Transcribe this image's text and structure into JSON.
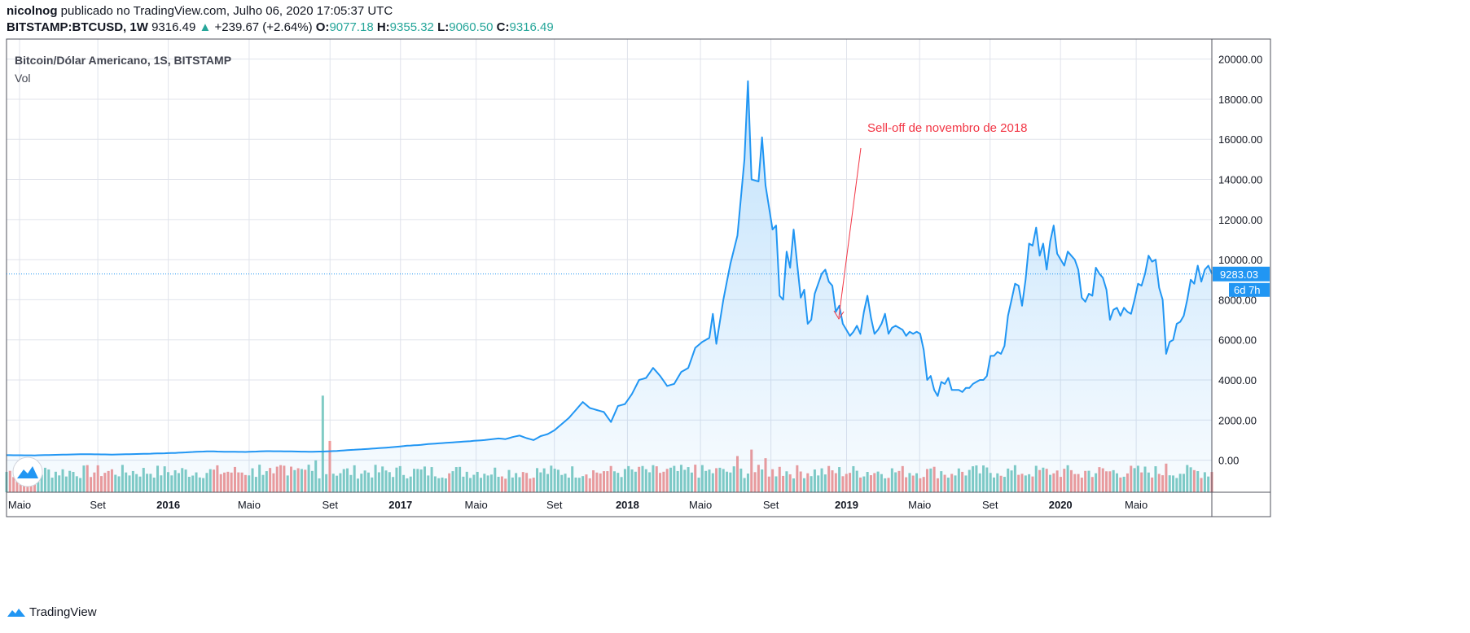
{
  "header": {
    "author": "nicolnog",
    "published_text": "publicado no TradingView.com, Julho 06, 2020 17:05:37 UTC",
    "symbol": "BITSTAMP:BTCUSD, 1W",
    "last": "9316.49",
    "change_arrow": "▲",
    "change": "+239.67 (+2.64%)",
    "o_label": "O:",
    "o_val": "9077.18",
    "h_label": "H:",
    "h_val": "9355.32",
    "l_label": "L:",
    "l_val": "9060.50",
    "c_label": "C:",
    "c_val": "9316.49"
  },
  "legend": {
    "title": "Bitcoin/Dólar Americano, 1S, BITSTAMP",
    "vol": "Vol"
  },
  "price_marker": {
    "value": "9283.03",
    "countdown": "6d 7h"
  },
  "footer": {
    "brand": "TradingView",
    "logo_icon": "tradingview-logo-icon"
  },
  "colors": {
    "line": "#2196f3",
    "area": "#2196f3",
    "vol_up": "#80cbc4",
    "vol_down": "#ef9a9a",
    "annotation": "#f23645",
    "marker": "#2196f3"
  },
  "chart_data": {
    "type": "area",
    "title": "Bitcoin/Dólar Americano, 1S, BITSTAMP",
    "ylim": [
      -1600,
      21000
    ],
    "y_ticks": [
      "20000.00",
      "18000.00",
      "16000.00",
      "14000.00",
      "12000.00",
      "10000.00",
      "8000.00",
      "6000.00",
      "4000.00",
      "2000.00",
      "0.00"
    ],
    "x_ticks": [
      "Maio",
      "Set",
      "2016",
      "Maio",
      "Set",
      "2017",
      "Maio",
      "Set",
      "2018",
      "Maio",
      "Set",
      "2019",
      "Maio",
      "Set",
      "2020",
      "Maio"
    ],
    "x_ticks_bold": [
      false,
      false,
      true,
      false,
      false,
      true,
      false,
      false,
      true,
      false,
      false,
      true,
      false,
      false,
      true,
      false
    ],
    "grid": true,
    "annotation": {
      "text": "Sell-off de novembro de 2018"
    },
    "price_keypoints": [
      [
        0,
        250
      ],
      [
        8,
        240
      ],
      [
        15,
        270
      ],
      [
        22,
        300
      ],
      [
        30,
        280
      ],
      [
        40,
        320
      ],
      [
        48,
        360
      ],
      [
        54,
        420
      ],
      [
        58,
        440
      ],
      [
        62,
        420
      ],
      [
        68,
        410
      ],
      [
        74,
        450
      ],
      [
        80,
        440
      ],
      [
        86,
        420
      ],
      [
        90,
        430
      ],
      [
        94,
        460
      ],
      [
        98,
        510
      ],
      [
        102,
        550
      ],
      [
        106,
        600
      ],
      [
        110,
        650
      ],
      [
        114,
        720
      ],
      [
        118,
        760
      ],
      [
        120,
        800
      ],
      [
        124,
        850
      ],
      [
        128,
        900
      ],
      [
        132,
        950
      ],
      [
        136,
        1000
      ],
      [
        140,
        1080
      ],
      [
        142,
        1050
      ],
      [
        144,
        1150
      ],
      [
        146,
        1230
      ],
      [
        148,
        1100
      ],
      [
        150,
        1000
      ],
      [
        152,
        1200
      ],
      [
        154,
        1300
      ],
      [
        156,
        1500
      ],
      [
        158,
        1800
      ],
      [
        160,
        2100
      ],
      [
        162,
        2500
      ],
      [
        164,
        2900
      ],
      [
        166,
        2600
      ],
      [
        168,
        2500
      ],
      [
        170,
        2400
      ],
      [
        172,
        1900
      ],
      [
        174,
        2700
      ],
      [
        176,
        2800
      ],
      [
        178,
        3300
      ],
      [
        180,
        4000
      ],
      [
        182,
        4100
      ],
      [
        184,
        4600
      ],
      [
        186,
        4200
      ],
      [
        188,
        3700
      ],
      [
        190,
        3800
      ],
      [
        192,
        4400
      ],
      [
        194,
        4600
      ],
      [
        196,
        5600
      ],
      [
        198,
        5900
      ],
      [
        200,
        6100
      ],
      [
        201,
        7300
      ],
      [
        202,
        5800
      ],
      [
        204,
        8000
      ],
      [
        206,
        9800
      ],
      [
        208,
        11200
      ],
      [
        210,
        15000
      ],
      [
        211,
        18900
      ],
      [
        212,
        14000
      ],
      [
        214,
        13900
      ],
      [
        215,
        16100
      ],
      [
        216,
        13700
      ],
      [
        218,
        11500
      ],
      [
        219,
        11700
      ],
      [
        220,
        8200
      ],
      [
        221,
        8000
      ],
      [
        222,
        10400
      ],
      [
        223,
        9600
      ],
      [
        224,
        11500
      ],
      [
        225,
        9800
      ],
      [
        226,
        8100
      ],
      [
        227,
        8500
      ],
      [
        228,
        6800
      ],
      [
        229,
        7000
      ],
      [
        230,
        8300
      ],
      [
        231,
        8800
      ],
      [
        232,
        9300
      ],
      [
        233,
        9500
      ],
      [
        234,
        8900
      ],
      [
        235,
        8700
      ],
      [
        236,
        7400
      ],
      [
        237,
        7700
      ],
      [
        238,
        6800
      ],
      [
        239,
        6500
      ],
      [
        240,
        6200
      ],
      [
        241,
        6400
      ],
      [
        242,
        6700
      ],
      [
        243,
        6300
      ],
      [
        244,
        7400
      ],
      [
        245,
        8200
      ],
      [
        246,
        7100
      ],
      [
        247,
        6300
      ],
      [
        248,
        6500
      ],
      [
        249,
        6800
      ],
      [
        250,
        7300
      ],
      [
        251,
        6300
      ],
      [
        252,
        6600
      ],
      [
        253,
        6700
      ],
      [
        254,
        6600
      ],
      [
        255,
        6500
      ],
      [
        256,
        6200
      ],
      [
        257,
        6400
      ],
      [
        258,
        6300
      ],
      [
        259,
        6400
      ],
      [
        260,
        6300
      ],
      [
        261,
        5500
      ],
      [
        262,
        4000
      ],
      [
        263,
        4200
      ],
      [
        264,
        3500
      ],
      [
        265,
        3200
      ],
      [
        266,
        3900
      ],
      [
        267,
        3800
      ],
      [
        268,
        4100
      ],
      [
        269,
        3500
      ],
      [
        271,
        3500
      ],
      [
        272,
        3400
      ],
      [
        273,
        3600
      ],
      [
        274,
        3600
      ],
      [
        275,
        3800
      ],
      [
        276,
        3900
      ],
      [
        277,
        4000
      ],
      [
        278,
        4000
      ],
      [
        279,
        4200
      ],
      [
        280,
        5200
      ],
      [
        281,
        5200
      ],
      [
        282,
        5400
      ],
      [
        283,
        5300
      ],
      [
        284,
        5700
      ],
      [
        285,
        7200
      ],
      [
        286,
        8000
      ],
      [
        287,
        8800
      ],
      [
        288,
        8700
      ],
      [
        289,
        7700
      ],
      [
        290,
        9000
      ],
      [
        291,
        10800
      ],
      [
        292,
        10700
      ],
      [
        293,
        11600
      ],
      [
        294,
        10200
      ],
      [
        295,
        10800
      ],
      [
        296,
        9500
      ],
      [
        297,
        10900
      ],
      [
        298,
        11700
      ],
      [
        299,
        10300
      ],
      [
        300,
        10000
      ],
      [
        301,
        9700
      ],
      [
        302,
        10400
      ],
      [
        303,
        10200
      ],
      [
        304,
        10000
      ],
      [
        305,
        9500
      ],
      [
        306,
        8100
      ],
      [
        307,
        7900
      ],
      [
        308,
        8300
      ],
      [
        309,
        8200
      ],
      [
        310,
        9600
      ],
      [
        311,
        9300
      ],
      [
        312,
        9100
      ],
      [
        313,
        8500
      ],
      [
        314,
        7000
      ],
      [
        315,
        7500
      ],
      [
        316,
        7600
      ],
      [
        317,
        7200
      ],
      [
        318,
        7600
      ],
      [
        319,
        7400
      ],
      [
        320,
        7300
      ],
      [
        321,
        8000
      ],
      [
        322,
        8800
      ],
      [
        323,
        8700
      ],
      [
        324,
        9300
      ],
      [
        325,
        10200
      ],
      [
        326,
        9900
      ],
      [
        327,
        10000
      ],
      [
        328,
        8600
      ],
      [
        329,
        8000
      ],
      [
        330,
        5300
      ],
      [
        331,
        5900
      ],
      [
        332,
        6000
      ],
      [
        333,
        6800
      ],
      [
        334,
        6900
      ],
      [
        335,
        7200
      ],
      [
        336,
        8000
      ],
      [
        337,
        9000
      ],
      [
        338,
        8800
      ],
      [
        339,
        9700
      ],
      [
        340,
        8900
      ],
      [
        341,
        9500
      ],
      [
        342,
        9700
      ],
      [
        343,
        9300
      ]
    ],
    "n_weeks": 344,
    "volume_highlights": [
      [
        72,
        900,
        1
      ],
      [
        74,
        600,
        1
      ],
      [
        76,
        500,
        0
      ],
      [
        80,
        400,
        1
      ],
      [
        82,
        650,
        1
      ],
      [
        84,
        700,
        1
      ],
      [
        86,
        900,
        1
      ],
      [
        88,
        1100,
        1
      ],
      [
        90,
        4100,
        1
      ],
      [
        92,
        2000,
        0
      ],
      [
        126,
        500,
        0
      ],
      [
        150,
        300,
        0
      ],
      [
        170,
        600,
        0
      ],
      [
        176,
        700,
        1
      ],
      [
        180,
        800,
        0
      ],
      [
        196,
        900,
        0
      ],
      [
        204,
        700,
        1
      ],
      [
        208,
        1300,
        0
      ],
      [
        212,
        1600,
        0
      ],
      [
        216,
        1200,
        0
      ],
      [
        220,
        800,
        0
      ],
      [
        262,
        700,
        0
      ],
      [
        268,
        300,
        1
      ],
      [
        282,
        500,
        1
      ],
      [
        290,
        400,
        1
      ],
      [
        298,
        500,
        0
      ],
      [
        306,
        300,
        0
      ],
      [
        330,
        950,
        0
      ],
      [
        332,
        400,
        1
      ]
    ]
  }
}
